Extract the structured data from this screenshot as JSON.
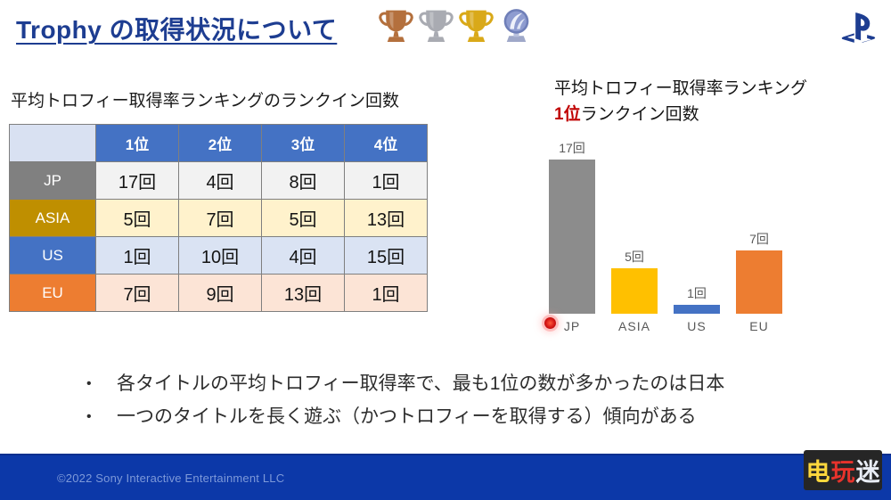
{
  "header": {
    "title": "Trophy の取得状況について",
    "trophy_icons": [
      "bronze-trophy",
      "silver-trophy",
      "gold-trophy",
      "platinum-trophy"
    ],
    "logo_icon": "playstation-logo"
  },
  "table_section": {
    "title": "平均トロフィー取得率ランキングのランクイン回数",
    "columns": [
      "",
      "1位",
      "2位",
      "3位",
      "4位"
    ],
    "header_bg": "#4472C4",
    "corner_bg": "#D9E1F2",
    "rows": [
      {
        "label": "JP",
        "header_color": "#808080",
        "row_color": "#F2F2F2",
        "values": [
          "17回",
          "4回",
          "8回",
          "1回"
        ]
      },
      {
        "label": "ASIA",
        "header_color": "#BF8F00",
        "row_color": "#FFF2CC",
        "values": [
          "5回",
          "7回",
          "5回",
          "13回"
        ]
      },
      {
        "label": "US",
        "header_color": "#4472C4",
        "row_color": "#DAE3F3",
        "values": [
          "1回",
          "10回",
          "4回",
          "15回"
        ]
      },
      {
        "label": "EU",
        "header_color": "#ED7D31",
        "row_color": "#FCE4D6",
        "values": [
          "7回",
          "9回",
          "13回",
          "1回"
        ]
      }
    ]
  },
  "chart_section": {
    "title_line1": "平均トロフィー取得率ランキング",
    "title_line2_highlight": "1位",
    "title_line2_rest": "ランクイン回数",
    "highlight_color": "#C00000"
  },
  "chart_data": {
    "type": "bar",
    "title": "平均トロフィー取得率ランキング 1位ランクイン回数",
    "categories": [
      "JP",
      "ASIA",
      "US",
      "EU"
    ],
    "values": [
      17,
      5,
      1,
      7
    ],
    "value_labels": [
      "17回",
      "5回",
      "1回",
      "7回"
    ],
    "colors": [
      "#8C8C8C",
      "#FFC000",
      "#4472C4",
      "#ED7D31"
    ],
    "xlabel": "",
    "ylabel": "",
    "ylim": [
      0,
      18
    ],
    "grid": false,
    "legend": "none",
    "annotations": [
      "laser-pointer-dot near JP label"
    ]
  },
  "bullet_char": "•",
  "bullets": [
    "各タイトルの平均トロフィー取得率で、最も1位の数が多かったのは日本",
    "一つのタイトルを長く遊ぶ（かつトロフィーを取得する）傾向がある"
  ],
  "footer": {
    "copyright": "©2022 Sony Interactive Entertainment LLC",
    "bg_color": "#0C38A8"
  },
  "watermark": {
    "text": "电玩迷",
    "characters": [
      {
        "char": "电",
        "color": "#ffd83d"
      },
      {
        "char": "玩",
        "color": "#e8332c"
      },
      {
        "char": "迷",
        "color": "#e9edf5"
      }
    ]
  }
}
